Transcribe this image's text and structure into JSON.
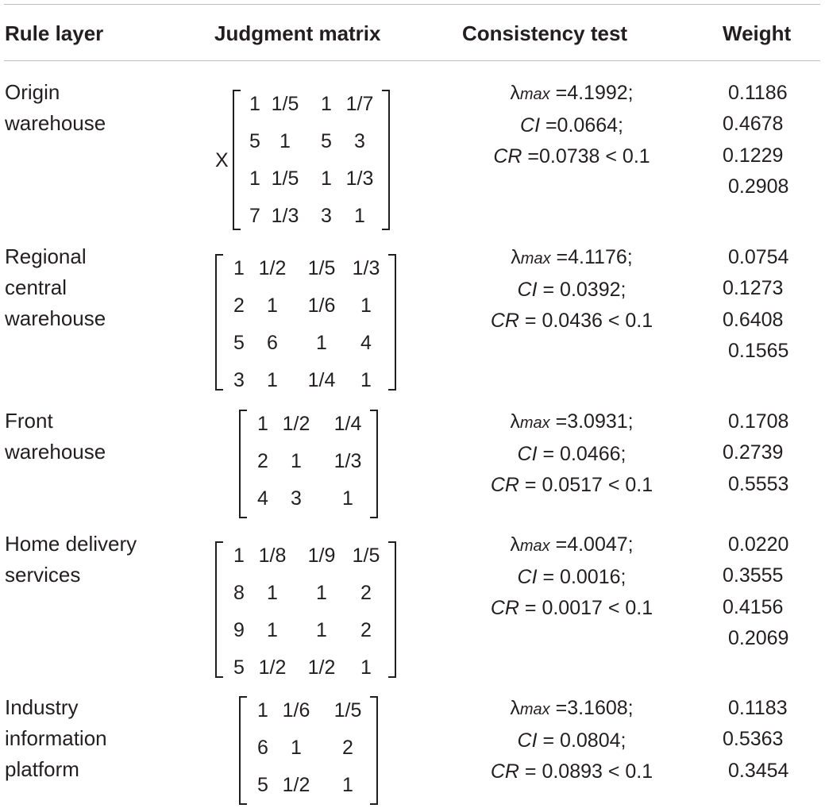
{
  "table": {
    "headers": [
      "Rule layer",
      "Judgment matrix",
      "Consistency test",
      "Weight"
    ],
    "rows": [
      {
        "label": [
          "Origin",
          "warehouse"
        ],
        "prefix": "X",
        "matrix": [
          [
            "1",
            "1/5",
            "1",
            "1/7"
          ],
          [
            "5",
            "1",
            "5",
            "3"
          ],
          [
            "1",
            "1/5",
            "1",
            "1/3"
          ],
          [
            "7",
            "1/3",
            "3",
            "1"
          ]
        ],
        "consistency": {
          "lambda_label": "λ",
          "lambda_sub": "max",
          "lambda_value": " =4.1992;",
          "ci_label": "CI",
          "ci_value": " =0.0664;",
          "cr_label": "CR",
          "cr_value": " =0.0738 < 0.1"
        },
        "weights": [
          "0.1186",
          "0.4678",
          "0.1229",
          "0.2908"
        ]
      },
      {
        "label": [
          "Regional",
          "central",
          "warehouse"
        ],
        "prefix": "",
        "matrix": [
          [
            "1",
            "1/2",
            "1/5",
            "1/3"
          ],
          [
            "2",
            "1",
            "1/6",
            "1"
          ],
          [
            "5",
            "6",
            "1",
            "4"
          ],
          [
            "3",
            "1",
            "1/4",
            "1"
          ]
        ],
        "consistency": {
          "lambda_label": "λ",
          "lambda_sub": "max",
          "lambda_value": " =4.1176;",
          "ci_label": "CI",
          "ci_value": " = 0.0392;",
          "cr_label": "CR",
          "cr_value": " = 0.0436 < 0.1"
        },
        "weights": [
          "0.0754",
          "0.1273",
          "0.6408",
          "0.1565"
        ]
      },
      {
        "label": [
          "Front",
          "warehouse"
        ],
        "prefix": "",
        "matrix": [
          [
            "1",
            "1/2",
            "1/4"
          ],
          [
            "2",
            "1",
            "1/3"
          ],
          [
            "4",
            "3",
            "1"
          ]
        ],
        "consistency": {
          "lambda_label": "λ",
          "lambda_sub": "max",
          "lambda_value": " =3.0931;",
          "ci_label": "CI",
          "ci_value": " = 0.0466;",
          "cr_label": "CR",
          "cr_value": " = 0.0517 < 0.1"
        },
        "weights": [
          "0.1708",
          "0.2739",
          "0.5553"
        ]
      },
      {
        "label": [
          "Home delivery",
          "services"
        ],
        "prefix": "",
        "matrix": [
          [
            "1",
            "1/8",
            "1/9",
            "1/5"
          ],
          [
            "8",
            "1",
            "1",
            "2"
          ],
          [
            "9",
            "1",
            "1",
            "2"
          ],
          [
            "5",
            "1/2",
            "1/2",
            "1"
          ]
        ],
        "consistency": {
          "lambda_label": "λ",
          "lambda_sub": "max",
          "lambda_value": " =4.0047;",
          "ci_label": "CI",
          "ci_value": " = 0.0016;",
          "cr_label": "CR",
          "cr_value": " = 0.0017 < 0.1"
        },
        "weights": [
          "0.0220",
          "0.3555",
          "0.4156",
          "0.2069"
        ]
      },
      {
        "label": [
          "Industry",
          "information",
          "platform"
        ],
        "prefix": "",
        "matrix": [
          [
            "1",
            "1/6",
            "1/5"
          ],
          [
            "6",
            "1",
            "2"
          ],
          [
            "5",
            "1/2",
            "1"
          ]
        ],
        "consistency": {
          "lambda_label": "λ",
          "lambda_sub": "max",
          "lambda_value": " =3.1608;",
          "ci_label": "CI",
          "ci_value": " = 0.0804;",
          "cr_label": "CR",
          "cr_value": " = 0.0893 < 0.1"
        },
        "weights": [
          "0.1183",
          "0.5363",
          "0.3454"
        ]
      }
    ]
  }
}
